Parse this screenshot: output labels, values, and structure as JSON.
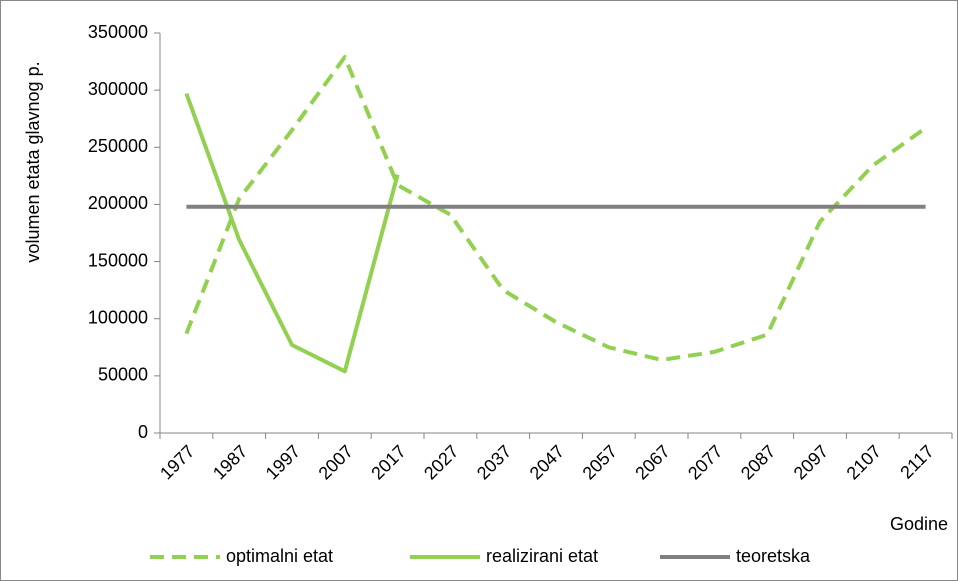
{
  "chart_data": {
    "type": "line",
    "x_label": "Godine",
    "y_label": "volumen etata glavnog p.",
    "categories": [
      "1977",
      "1987",
      "1997",
      "2007",
      "2017",
      "2027",
      "2037",
      "2047",
      "2057",
      "2067",
      "2077",
      "2087",
      "2097",
      "2107",
      "2117"
    ],
    "series": [
      {
        "name": "optimalni etat",
        "color": "#92d050",
        "dash": true,
        "values": [
          87000,
          205000,
          265000,
          329000,
          217000,
          191000,
          125000,
          97000,
          75000,
          64000,
          71000,
          86000,
          185000,
          234000,
          267000
        ]
      },
      {
        "name": "realizirani etat",
        "color": "#92d050",
        "dash": false,
        "values": [
          297000,
          169000,
          77000,
          54000,
          226000,
          null,
          null,
          null,
          null,
          null,
          null,
          null,
          null,
          null,
          null
        ]
      },
      {
        "name": "teoretska",
        "color": "#808080",
        "dash": false,
        "values": [
          198000,
          198000,
          198000,
          198000,
          198000,
          198000,
          198000,
          198000,
          198000,
          198000,
          198000,
          198000,
          198000,
          198000,
          198000
        ]
      }
    ],
    "ylim": [
      0,
      350000
    ],
    "yticks": [
      0,
      50000,
      100000,
      150000,
      200000,
      250000,
      300000,
      350000
    ],
    "grid": false,
    "legend": "bottom"
  }
}
